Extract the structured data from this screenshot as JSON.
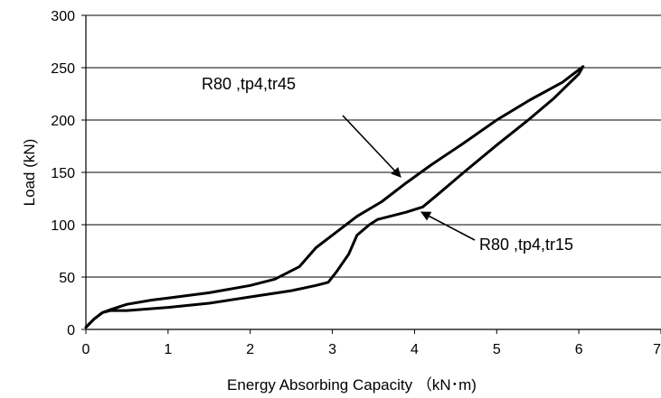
{
  "chart_data": {
    "type": "line",
    "title": "",
    "xlabel": "Energy Absorbing Capacity （kN･m)",
    "ylabel": "Load (kN)",
    "xlim": [
      0,
      7
    ],
    "ylim": [
      0,
      300
    ],
    "xticks": [
      0,
      1,
      2,
      3,
      4,
      5,
      6,
      7
    ],
    "yticks": [
      0,
      50,
      100,
      150,
      200,
      250,
      300
    ],
    "xtick_labels": [
      "0",
      "1",
      "2",
      "3",
      "4",
      "5",
      "6",
      "7"
    ],
    "ytick_labels": [
      "0",
      "50",
      "100",
      "150",
      "200",
      "250",
      "300"
    ],
    "grid": "horizontal",
    "legend": "none",
    "series": [
      {
        "name": "R80 ,tp4,tr45",
        "x": [
          0,
          0.1,
          0.2,
          0.3,
          0.5,
          0.8,
          1.0,
          1.5,
          2.0,
          2.3,
          2.6,
          2.8,
          3.0,
          3.3,
          3.6,
          3.9,
          4.2,
          4.6,
          5.0,
          5.4,
          5.8,
          6.0,
          6.05
        ],
        "y": [
          2,
          10,
          16,
          19,
          24,
          28,
          30,
          35,
          42,
          48,
          60,
          78,
          90,
          108,
          122,
          140,
          157,
          178,
          200,
          219,
          236,
          248,
          251
        ]
      },
      {
        "name": "R80 ,tp4,tr15",
        "x": [
          0,
          0.1,
          0.2,
          0.3,
          0.5,
          1.0,
          1.5,
          2.0,
          2.5,
          2.8,
          2.95,
          3.05,
          3.2,
          3.3,
          3.45,
          3.55,
          3.7,
          3.9,
          4.1,
          4.3,
          4.6,
          5.0,
          5.4,
          5.7,
          6.0,
          6.05
        ],
        "y": [
          2,
          10,
          16,
          18,
          18,
          21,
          25,
          31,
          37,
          42,
          45,
          55,
          72,
          90,
          100,
          105,
          108,
          112,
          117,
          130,
          150,
          176,
          201,
          221,
          244,
          251
        ]
      }
    ],
    "annotations": [
      {
        "text": "R80 ,tp4,tr45",
        "series": 0,
        "points_to": [
          3.85,
          140
        ]
      },
      {
        "text": "R80 ,tp4,tr15",
        "series": 1,
        "points_to": [
          4.1,
          116
        ]
      }
    ]
  }
}
